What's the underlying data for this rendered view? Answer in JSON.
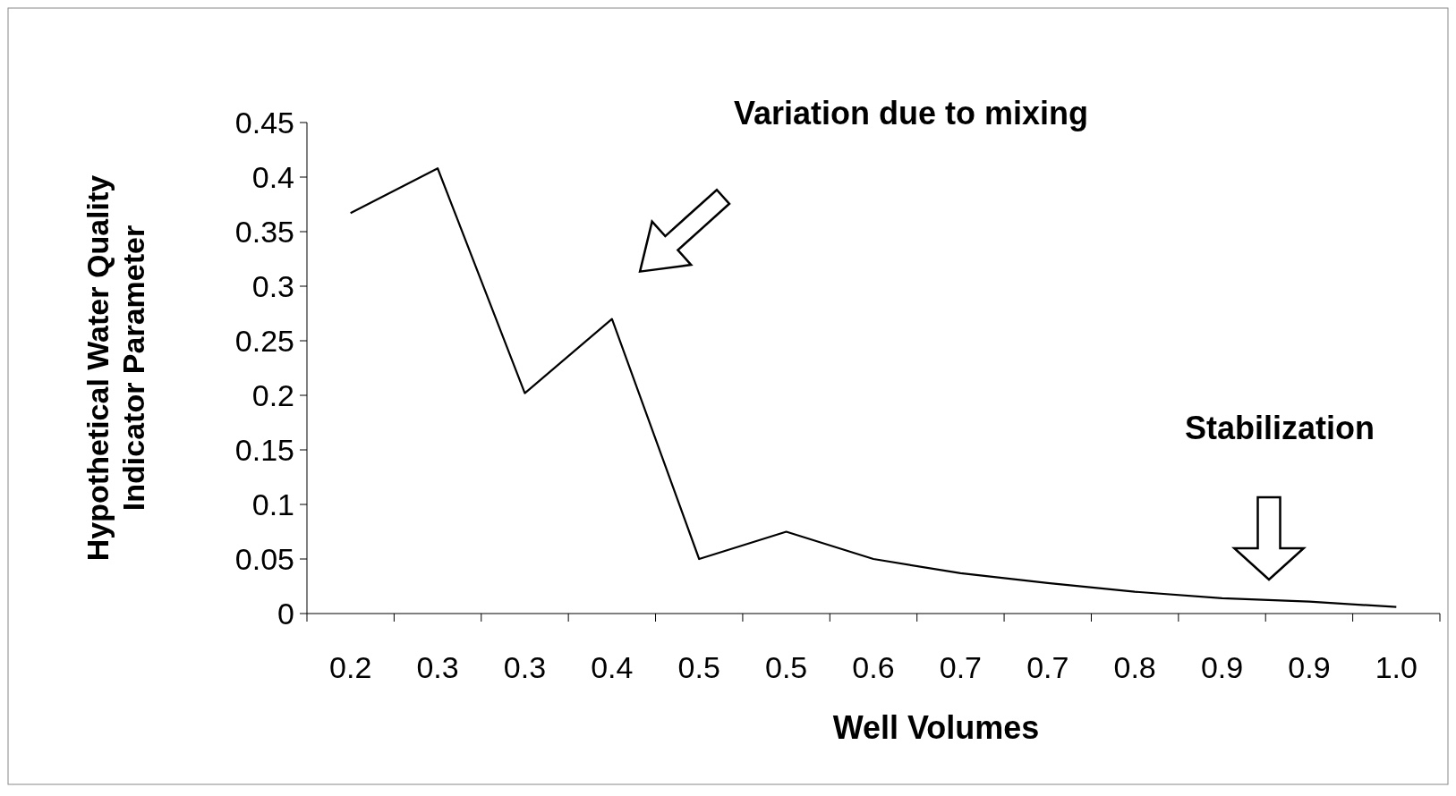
{
  "chart_data": {
    "type": "line",
    "xlabel": "Well Volumes",
    "ylabel": "Hypothetical Water Quality\nIndicator Parameter",
    "categories": [
      "0.2",
      "0.3",
      "0.3",
      "0.4",
      "0.5",
      "0.5",
      "0.6",
      "0.7",
      "0.7",
      "0.8",
      "0.9",
      "0.9",
      "1.0"
    ],
    "series": [
      {
        "color": "#000000",
        "values": [
          0.367,
          0.408,
          0.202,
          0.27,
          0.05,
          0.075,
          0.05,
          0.037,
          0.028,
          0.02,
          0.014,
          0.011,
          0.006
        ]
      }
    ],
    "ylim": [
      0,
      0.45
    ],
    "yticks": [
      0,
      0.05,
      0.1,
      0.15,
      0.2,
      0.25,
      0.3,
      0.35,
      0.4,
      0.45
    ],
    "grid": false,
    "marker": "none",
    "line_style": "solid",
    "annotations": [
      "Variation due to mixing",
      "Stabilization"
    ]
  }
}
